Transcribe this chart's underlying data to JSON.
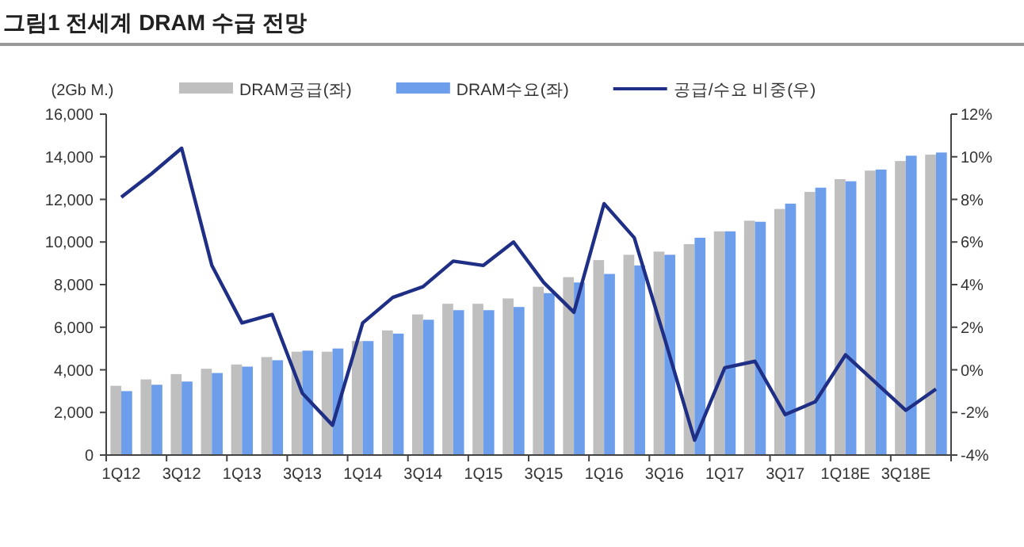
{
  "chart_data": {
    "type": "bar",
    "title": "그림1 전세계 DRAM 수급 전망",
    "ylabel": "(2Gb M.)",
    "categories": [
      "1Q12",
      null,
      "3Q12",
      null,
      "1Q13",
      null,
      "3Q13",
      null,
      "1Q14",
      null,
      "3Q14",
      null,
      "1Q15",
      null,
      "3Q15",
      null,
      "1Q16",
      null,
      "3Q16",
      null,
      "1Q17",
      null,
      "3Q17",
      null,
      "1Q18E",
      null,
      "3Q18E",
      null
    ],
    "series": [
      {
        "name": "DRAM공급(좌)",
        "color": "#bfbfbf",
        "values": [
          3250,
          3550,
          3800,
          4050,
          4250,
          4600,
          4850,
          4850,
          5350,
          5850,
          6600,
          7100,
          7100,
          7350,
          7900,
          8350,
          9150,
          9400,
          9550,
          9900,
          10500,
          11000,
          11550,
          12350,
          12950,
          13350,
          13800,
          14100
        ]
      },
      {
        "name": "DRAM수요(좌)",
        "color": "#6d9eeb",
        "values": [
          3000,
          3300,
          3450,
          3850,
          4150,
          4450,
          4900,
          5000,
          5350,
          5700,
          6350,
          6800,
          6800,
          6950,
          7600,
          8100,
          8500,
          8900,
          9400,
          10200,
          10500,
          10950,
          11800,
          12550,
          12850,
          13400,
          14050,
          14200
        ]
      },
      {
        "name": "공급/수요 비중(우)",
        "type": "line",
        "axis": "y2",
        "color": "#1f2f86",
        "values": [
          8.1,
          9.2,
          10.4,
          4.9,
          2.2,
          2.6,
          -1.1,
          -2.6,
          2.2,
          3.4,
          3.9,
          5.1,
          4.9,
          6.0,
          4.1,
          2.7,
          7.8,
          6.2,
          1.5,
          -3.3,
          0.1,
          0.4,
          -2.1,
          -1.5,
          0.7,
          -0.6,
          -1.9,
          -0.9
        ]
      }
    ],
    "ylim": [
      0,
      16000
    ],
    "yticks": [
      {
        "value": 0,
        "label": "0"
      },
      {
        "value": 2000,
        "label": "2,000"
      },
      {
        "value": 4000,
        "label": "4,000"
      },
      {
        "value": 6000,
        "label": "6,000"
      },
      {
        "value": 8000,
        "label": "8,000"
      },
      {
        "value": 10000,
        "label": "10,000"
      },
      {
        "value": 12000,
        "label": "12,000"
      },
      {
        "value": 14000,
        "label": "14,000"
      },
      {
        "value": 16000,
        "label": "16,000"
      }
    ],
    "y2lim": [
      -4,
      12
    ],
    "y2ticks": [
      {
        "value": -4,
        "label": "-4%"
      },
      {
        "value": -2,
        "label": "-2%"
      },
      {
        "value": 0,
        "label": "0%"
      },
      {
        "value": 2,
        "label": "2%"
      },
      {
        "value": 4,
        "label": "4%"
      },
      {
        "value": 6,
        "label": "6%"
      },
      {
        "value": 8,
        "label": "8%"
      },
      {
        "value": 10,
        "label": "10%"
      },
      {
        "value": 12,
        "label": "12%"
      }
    ],
    "legend": "top",
    "grid": false
  }
}
